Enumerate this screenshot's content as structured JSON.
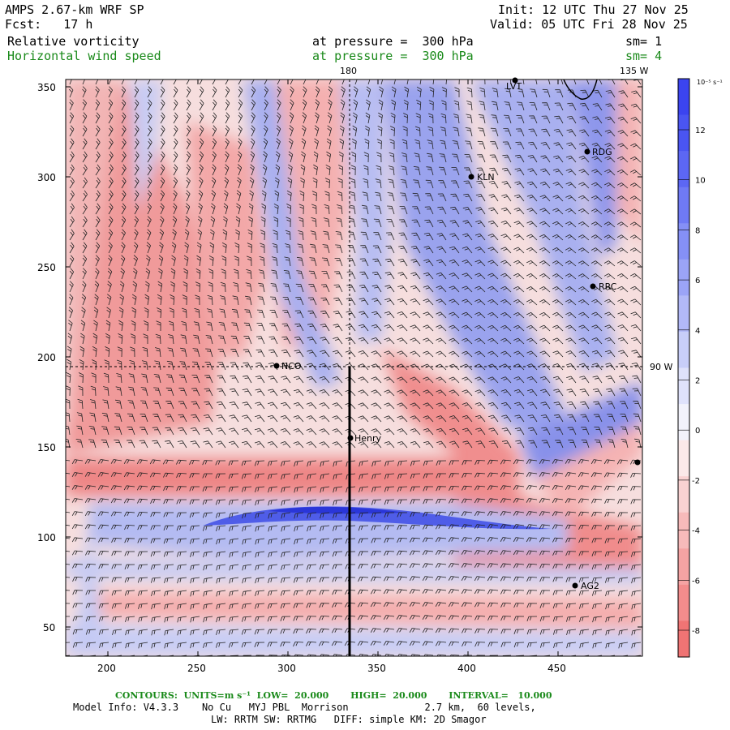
{
  "header": {
    "title": "AMPS 2.67-km WRF SP",
    "forecast": "Fcst:   17 h",
    "init": "Init: 12 UTC Thu 27 Nov 25",
    "valid": "Valid: 05 UTC Fri 28 Nov 25",
    "field1": "Relative vorticity",
    "field2": "Horizontal wind speed",
    "level1": "at pressure =  300 hPa",
    "level2": "at pressure =  300 hPa",
    "smooth1": "sm= 1",
    "smooth2": "sm= 4"
  },
  "map": {
    "meridian_labels": [
      "180",
      "135 W",
      "90 W"
    ],
    "x_ticks": [
      "200",
      "250",
      "300",
      "350",
      "400",
      "450"
    ],
    "y_ticks": [
      "50",
      "100",
      "150",
      "200",
      "250",
      "300",
      "350"
    ],
    "stations": [
      "NCO",
      "Henry",
      "KLN",
      "RDG",
      "RRC",
      "AG2",
      "LVT"
    ]
  },
  "colorbar": {
    "units": "10⁻⁵ s⁻¹",
    "labels": [
      "12",
      "10",
      "8",
      "6",
      "4",
      "2",
      "0",
      "-2",
      "-4",
      "-6",
      "-8"
    ],
    "colors": [
      "#3b44f0",
      "#4a55f2",
      "#5c67f4",
      "#6f7af5",
      "#8590f6",
      "#9ba4f7",
      "#b2b9f8",
      "#c8cef9",
      "#dfe2fb",
      "#f2f2fb",
      "#fbe9e9",
      "#f9d2d2",
      "#f7baba",
      "#f5a3a3",
      "#f38c8c",
      "#f07474"
    ]
  },
  "footer": {
    "contours": "CONTOURS:  UNITS=m s⁻¹  LOW=  20.000       HIGH=  20.000       INTERVAL=   10.000",
    "info1": "Model Info: V4.3.3    No Cu   MYJ PBL  Morrison             2.7 km,  60 levels,",
    "info2": "LW: RRTM SW: RRTMG   DIFF: simple KM: 2D Smagor"
  }
}
